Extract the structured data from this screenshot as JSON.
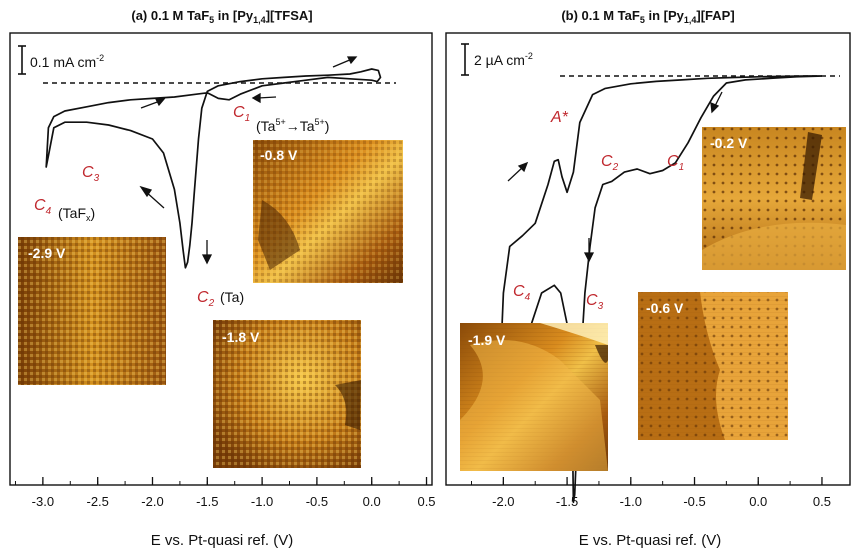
{
  "chart_data": [
    {
      "type": "line",
      "title": "(a) 0.1 M TaF",
      "title_sub": "5",
      "title_rest": " in [Py",
      "title_sub2": "1,4",
      "title_end": "][TFSA]",
      "xlabel": "E vs. Pt-quasi ref. (V)",
      "xlim": [
        -3.3,
        0.55
      ],
      "xticks": [
        "-3.0",
        "-2.5",
        "-2.0",
        "-1.5",
        "-1.0",
        "-0.5",
        "0.0",
        "0.5"
      ],
      "scale_bar": "0.1 mA cm",
      "scale_sup": "-2",
      "zero_line": "dashed",
      "series": [
        {
          "x": [
            0.05,
            0.08,
            0.06,
            0.0,
            -0.1,
            -0.2,
            -0.4,
            -0.6,
            -0.8,
            -1.0,
            -1.2,
            -1.4,
            -1.5,
            -1.55,
            -1.58,
            -1.6,
            -1.62,
            -1.64,
            -1.66,
            -1.68,
            -1.7,
            -1.72,
            -1.75,
            -1.8,
            -1.9,
            -2.0,
            -2.2,
            -2.4,
            -2.6,
            -2.8,
            -2.9,
            -2.95,
            -2.97,
            -2.95,
            -2.9,
            -2.8,
            -2.6,
            -2.4,
            -2.2,
            -2.0,
            -1.8,
            -1.6,
            -1.5,
            -1.4,
            -1.3,
            -1.2,
            -1.0,
            -0.8,
            -0.6,
            -0.4,
            -0.2,
            0.0,
            0.05
          ],
          "y": [
            0.005,
            0.02,
            0.045,
            0.05,
            0.04,
            0.032,
            0.028,
            0.025,
            0.02,
            0.015,
            0.005,
            -0.01,
            -0.03,
            -0.09,
            -0.2,
            -0.3,
            -0.4,
            -0.5,
            -0.58,
            -0.64,
            -0.66,
            -0.6,
            -0.5,
            -0.38,
            -0.25,
            -0.2,
            -0.17,
            -0.15,
            -0.14,
            -0.14,
            -0.16,
            -0.26,
            -0.3,
            -0.16,
            -0.12,
            -0.1,
            -0.085,
            -0.07,
            -0.06,
            -0.055,
            -0.05,
            -0.04,
            -0.035,
            -0.055,
            -0.06,
            -0.04,
            -0.01,
            0.0,
            0.01,
            0.02,
            0.015,
            0.01,
            0.005
          ]
        }
      ],
      "annotations": [
        {
          "label": "C",
          "sub": "1",
          "extra": "(Ta",
          "extra_sup": "5+",
          "extra2": "Ta",
          "extra_sup2": "5+",
          "extra_end": ")"
        },
        {
          "label": "C",
          "sub": "2",
          "extra": "(Ta)"
        },
        {
          "label": "C",
          "sub": "3"
        },
        {
          "label": "C",
          "sub": "4",
          "extra": "(TaF",
          "extra_sub": "x",
          "extra_end": ")"
        }
      ],
      "images": [
        {
          "label": "-2.9 V"
        },
        {
          "label": "-0.8 V"
        },
        {
          "label": "-1.8 V"
        }
      ]
    },
    {
      "type": "line",
      "title": "(b) 0.1 M TaF",
      "title_sub": "5",
      "title_rest": " in [Py",
      "title_sub2": "1,4",
      "title_end": "][FAP]",
      "xlabel": "E vs. Pt-quasi ref. (V)",
      "xlim": [
        -2.45,
        0.72
      ],
      "xticks": [
        "-2.0",
        "-1.5",
        "-1.0",
        "-0.5",
        "0.0",
        "0.5"
      ],
      "scale_bar": "2 µA cm",
      "scale_sup": "-2",
      "zero_line": "dashed",
      "series": [
        {
          "x": [
            0.5,
            0.3,
            0.1,
            -0.1,
            -0.25,
            -0.35,
            -0.45,
            -0.55,
            -0.65,
            -0.75,
            -0.85,
            -0.95,
            -1.05,
            -1.15,
            -1.22,
            -1.28,
            -1.32,
            -1.36,
            -1.39,
            -1.42,
            -1.44,
            -1.45,
            -1.46,
            -1.5,
            -1.55,
            -1.6,
            -1.7,
            -1.8,
            -1.9,
            -1.96,
            -2.0,
            -2.02,
            -2.0,
            -1.95,
            -1.85,
            -1.75,
            -1.65,
            -1.6,
            -1.57,
            -1.54,
            -1.5,
            -1.45,
            -1.4,
            -1.3,
            -1.2,
            -1.0,
            -0.8,
            -0.6,
            -0.4,
            -0.2,
            0.0,
            0.2,
            0.4,
            0.5
          ],
          "y": [
            0.0,
            -0.05,
            -0.15,
            -0.25,
            -0.45,
            -1.3,
            -2.7,
            -4.3,
            -5.6,
            -6.1,
            -6.3,
            -6.0,
            -6.2,
            -6.8,
            -7.0,
            -8.5,
            -11,
            -14,
            -18,
            -23,
            -27,
            -27.5,
            -22,
            -16,
            -14,
            -13.5,
            -14,
            -16.5,
            -19,
            -21.5,
            -22,
            -18,
            -14,
            -11,
            -10.3,
            -9.5,
            -7,
            -5.5,
            -5.4,
            -6.5,
            -7.5,
            -6.2,
            -3,
            -1.2,
            -0.8,
            -0.5,
            -0.35,
            -0.25,
            -0.15,
            -0.1,
            -0.05,
            -0.02,
            0.0,
            0.0
          ]
        }
      ],
      "annotations": [
        {
          "label": "A*"
        },
        {
          "label": "C",
          "sub": "1"
        },
        {
          "label": "C",
          "sub": "2"
        },
        {
          "label": "C",
          "sub": "3"
        },
        {
          "label": "C",
          "sub": "4"
        }
      ],
      "images": [
        {
          "label": "-0.2 V"
        },
        {
          "label": "-1.9 V"
        },
        {
          "label": "-0.6 V"
        }
      ]
    }
  ],
  "colors": {
    "curve": "#111111",
    "annotation": "#c0282e",
    "stm_dark": "#3a1c02",
    "stm_mid": "#b8680e",
    "stm_bright": "#ffd34a"
  }
}
